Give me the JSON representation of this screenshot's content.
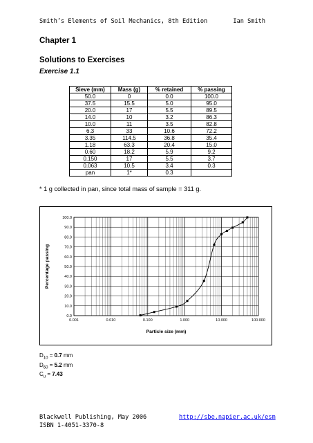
{
  "header": {
    "book": "Smith’s Elements of Soil Mechanics, 8th Edition",
    "author": "Ian Smith"
  },
  "chapter": "Chapter 1",
  "subtitle": "Solutions to Exercises",
  "exercise": "Exercise 1.1",
  "table": {
    "headers": [
      "Sieve (mm)",
      "Mass (g)",
      "% retained",
      "% passing"
    ],
    "rows": [
      [
        "50.0",
        "0",
        "0.0",
        "100.0"
      ],
      [
        "37.5",
        "15.5",
        "5.0",
        "95.0"
      ],
      [
        "20.0",
        "17",
        "5.5",
        "89.5"
      ],
      [
        "14.0",
        "10",
        "3.2",
        "86.3"
      ],
      [
        "10.0",
        "11",
        "3.5",
        "82.8"
      ],
      [
        "6.3",
        "33",
        "10.6",
        "72.2"
      ],
      [
        "3.35",
        "114.5",
        "36.8",
        "35.4"
      ],
      [
        "1.18",
        "63.3",
        "20.4",
        "15.0"
      ],
      [
        "0.60",
        "18.2",
        "5.9",
        "9.2"
      ],
      [
        "0.150",
        "17",
        "5.5",
        "3.7"
      ],
      [
        "0.063",
        "10.5",
        "3.4",
        "0.3"
      ],
      [
        "pan",
        "1*",
        "0.3",
        ""
      ]
    ]
  },
  "note": "* 1 g collected in pan, since total mass of sample = 311 g.",
  "chart_data": {
    "type": "line",
    "x_scale": "log",
    "xlabel": "Particle size (mm)",
    "ylabel": "Percentage passing",
    "xlim": [
      0.001,
      100
    ],
    "ylim": [
      0,
      100
    ],
    "x_ticks": [
      "0.001",
      "0.010",
      "0.100",
      "1.000",
      "10.000",
      "100.000"
    ],
    "y_ticks": [
      "0.0",
      "10.0",
      "20.0",
      "30.0",
      "40.0",
      "50.0",
      "60.0",
      "70.0",
      "80.0",
      "90.0",
      "100.0"
    ],
    "grid": true,
    "series": [
      {
        "x": [
          0.063,
          0.15,
          0.6,
          1.18,
          3.35,
          6.3,
          10.0,
          14.0,
          20.0,
          37.5,
          50.0
        ],
        "y": [
          0.3,
          3.7,
          9.2,
          15.0,
          35.4,
          72.2,
          82.8,
          86.3,
          89.5,
          95.0,
          100.0
        ]
      }
    ]
  },
  "d_values": {
    "d10": {
      "label": "D",
      "sub": "10",
      "eq": " = ",
      "value": "0.7",
      "unit": " mm"
    },
    "d60": {
      "label": "D",
      "sub": "60",
      "eq": " = ",
      "value": "5.2",
      "unit": " mm"
    },
    "cu": {
      "label": "C",
      "sub": "u",
      "eq": " = ",
      "value": "7.43",
      "unit": ""
    }
  },
  "footer": {
    "publisher": "Blackwell Publishing, May 2006",
    "isbn": "ISBN 1-4051-3370-8",
    "url": "http://sbe.napier.ac.uk/esm"
  }
}
